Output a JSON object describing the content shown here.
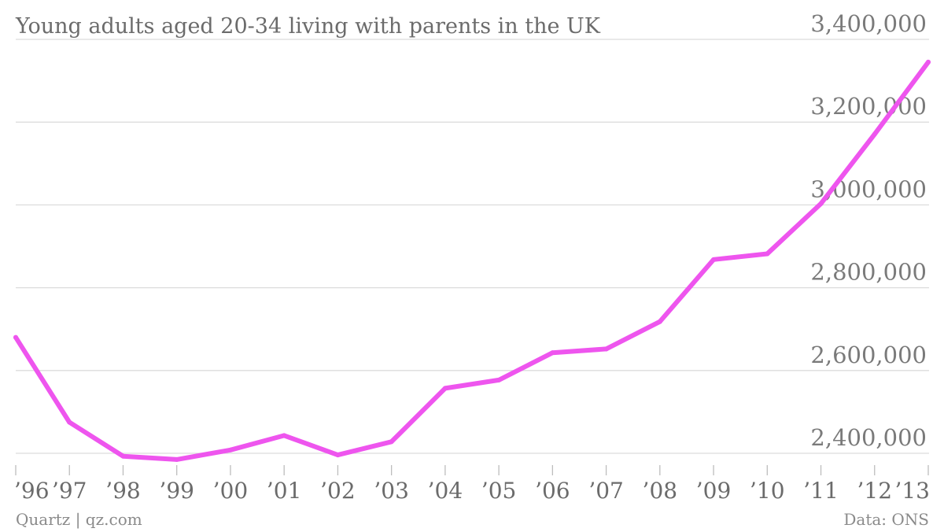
{
  "chart_data": {
    "type": "line",
    "title": "Young adults aged 20-34 living with parents in the UK",
    "categories": [
      "’96",
      "’97",
      "’98",
      "’99",
      "’00",
      "’01",
      "’02",
      "’03",
      "’04",
      "’05",
      "’06",
      "’07",
      "’08",
      "’09",
      "’10",
      "’11",
      "’12",
      "’13"
    ],
    "series": [
      {
        "name": "",
        "color": "#ee55ee",
        "values": [
          2680000,
          2475000,
          2393000,
          2385000,
          2408000,
          2443000,
          2396000,
          2428000,
          2557000,
          2577000,
          2643000,
          2652000,
          2718000,
          2868000,
          2882000,
          3003000,
          3171000,
          3345000
        ]
      }
    ],
    "ylim": [
      2400000,
      3400000
    ],
    "yticks": [
      "2,400,000",
      "2,600,000",
      "2,800,000",
      "3,000,000",
      "3,200,000",
      "3,400,000"
    ],
    "ytick_values": [
      2400000,
      2600000,
      2800000,
      3000000,
      3200000,
      3400000
    ],
    "y_axis_side": "right",
    "grid": true,
    "xlabel": "",
    "ylabel": ""
  },
  "footer": {
    "source_left": "Quartz | qz.com",
    "source_right": "Data: ONS"
  }
}
